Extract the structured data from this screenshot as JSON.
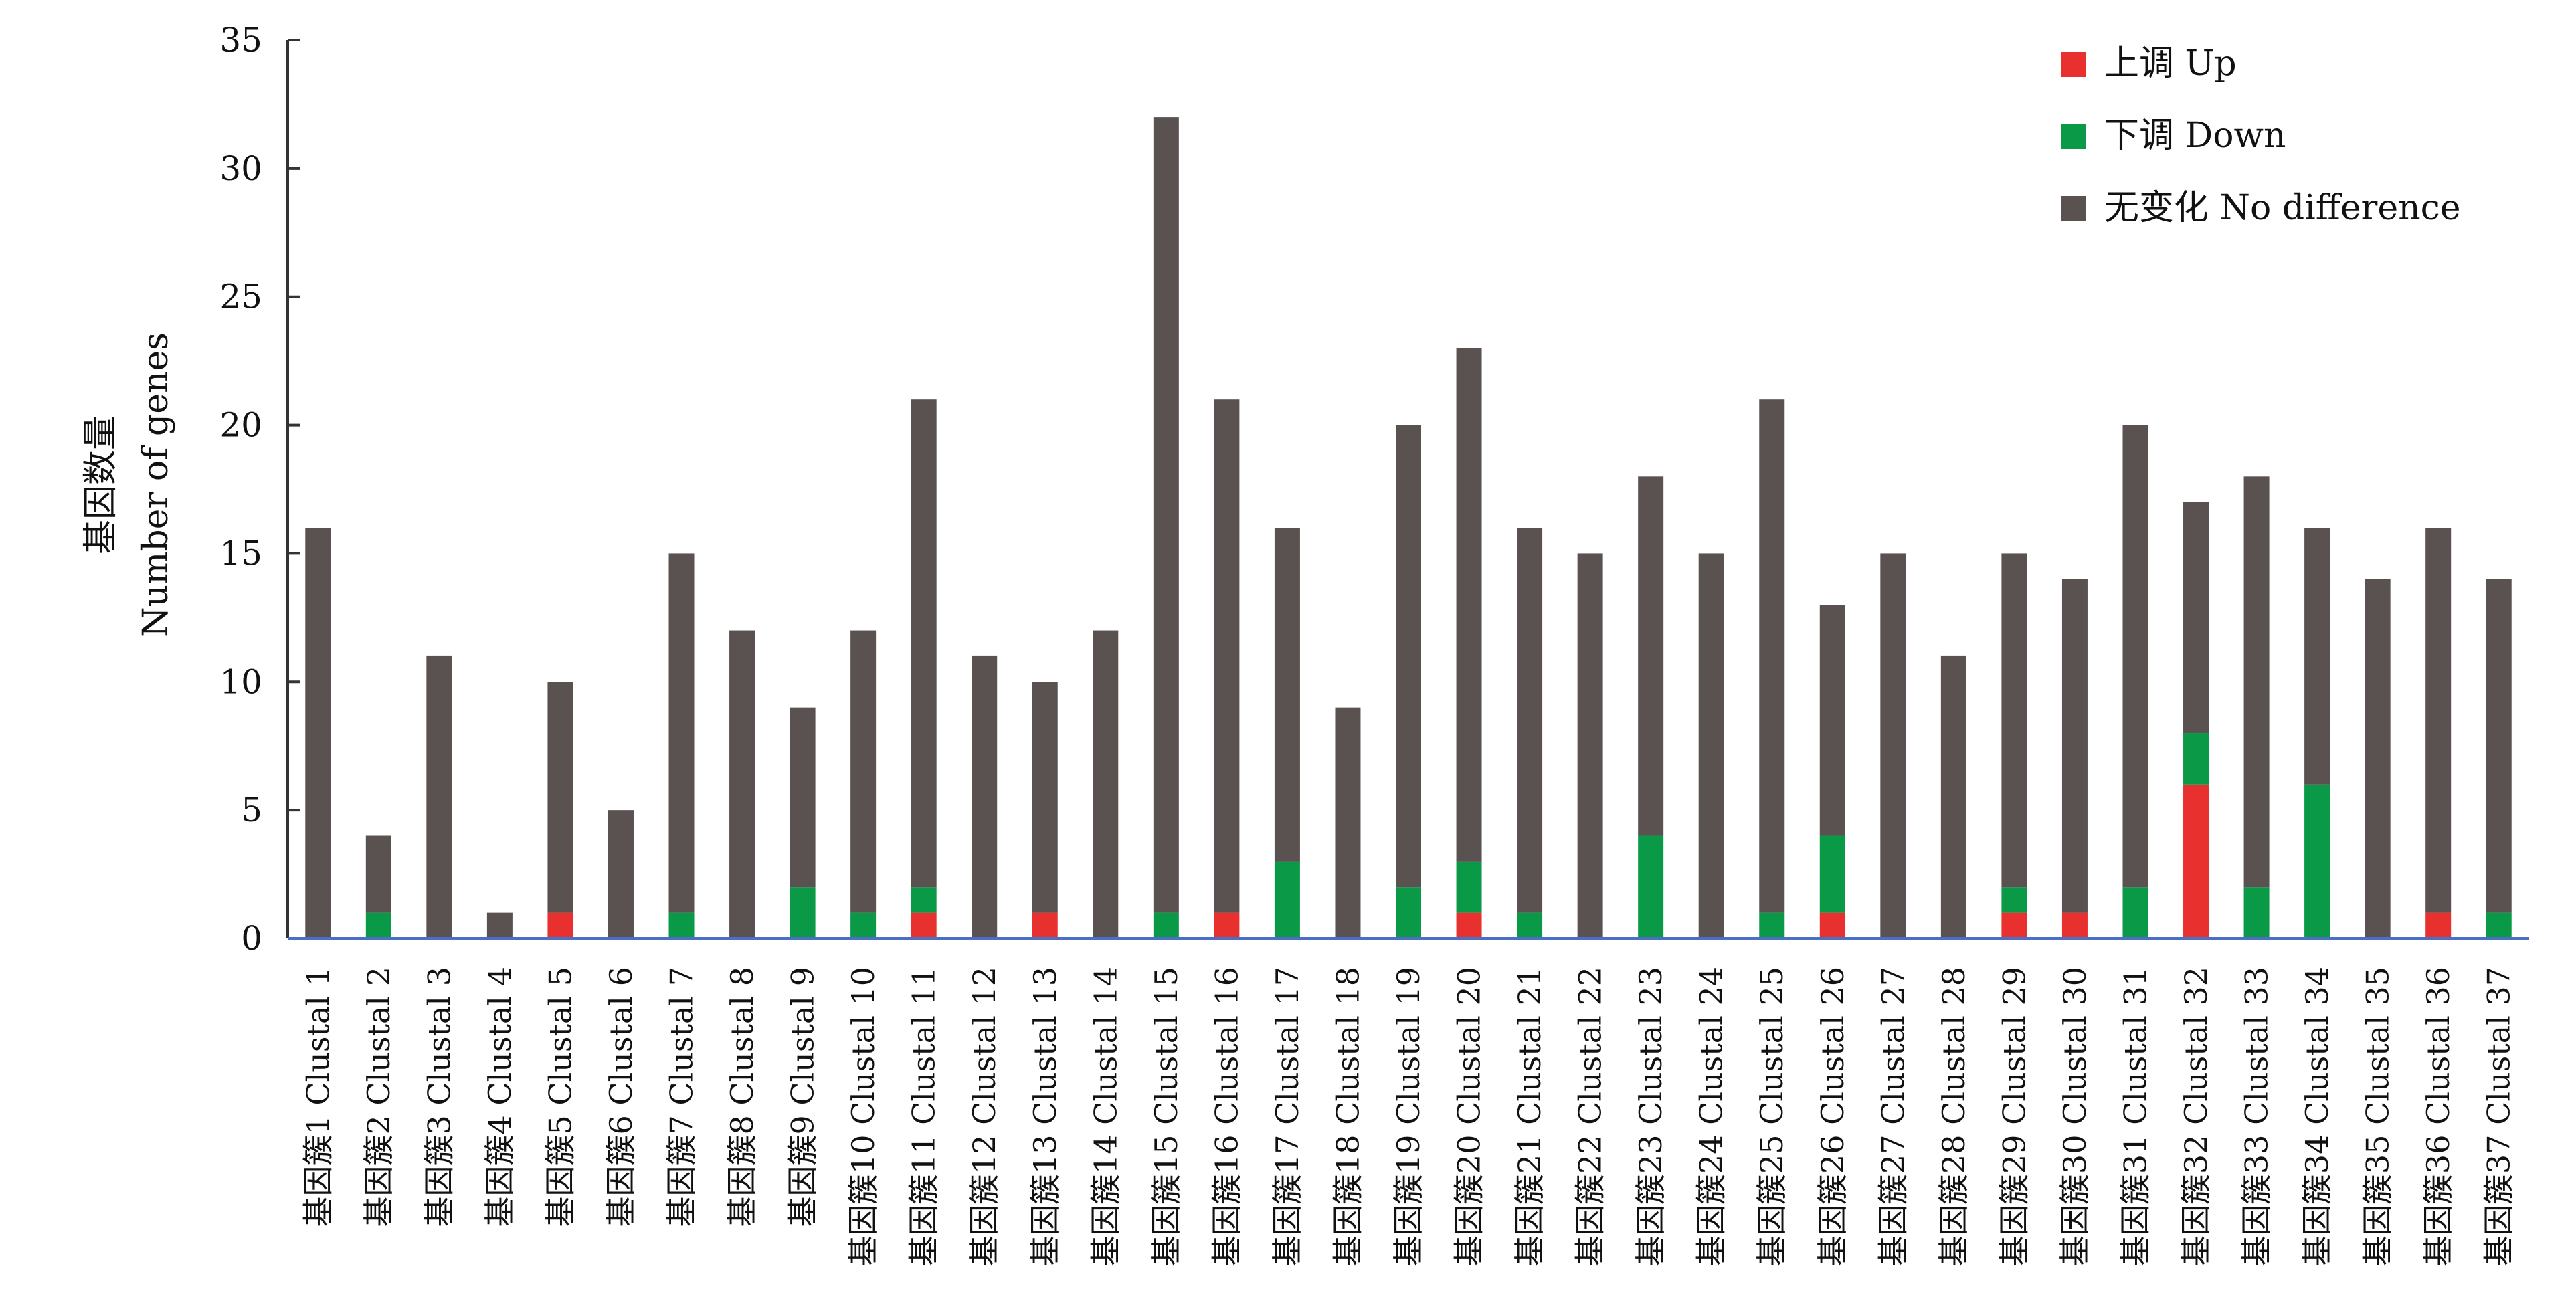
{
  "chart_data": {
    "type": "bar",
    "stacked": true,
    "ylabel": [
      "基因数量",
      "Number of genes"
    ],
    "xlabel": "",
    "ylim": [
      0,
      35
    ],
    "yticks": [
      0,
      5,
      10,
      15,
      20,
      25,
      30,
      35
    ],
    "grid": false,
    "legend_position": "top-right",
    "categories": [
      "基因簇1 Clustal 1",
      "基因簇2 Clustal 2",
      "基因簇3 Clustal 3",
      "基因簇4 Clustal 4",
      "基因簇5 Clustal 5",
      "基因簇6 Clustal 6",
      "基因簇7 Clustal 7",
      "基因簇8 Clustal 8",
      "基因簇9 Clustal 9",
      "基因簇10 Clustal 10",
      "基因簇11 Clustal 11",
      "基因簇12 Clustal 12",
      "基因簇13 Clustal 13",
      "基因簇14 Clustal 14",
      "基因簇15 Clustal 15",
      "基因簇16 Clustal 16",
      "基因簇17 Clustal 17",
      "基因簇18 Clustal 18",
      "基因簇19 Clustal 19",
      "基因簇20 Clustal 20",
      "基因簇21 Clustal 21",
      "基因簇22 Clustal 22",
      "基因簇23 Clustal 23",
      "基因簇24 Clustal 24",
      "基因簇25 Clustal 25",
      "基因簇26 Clustal 26",
      "基因簇27 Clustal 27",
      "基因簇28 Clustal 28",
      "基因簇29 Clustal 29",
      "基因簇30 Clustal 30",
      "基因簇31 Clustal 31",
      "基因簇32 Clustal 32",
      "基因簇33 Clustal 33",
      "基因簇34 Clustal 34",
      "基因簇35 Clustal 35",
      "基因簇36 Clustal 36",
      "基因簇37 Clustal 37"
    ],
    "series": [
      {
        "name": "上调 Up",
        "color": "#e8302e",
        "values": [
          0,
          0,
          0,
          0,
          1,
          0,
          0,
          0,
          0,
          0,
          1,
          0,
          1,
          0,
          0,
          1,
          0,
          0,
          0,
          1,
          0,
          0,
          0,
          0,
          0,
          1,
          0,
          0,
          1,
          1,
          0,
          6,
          0,
          0,
          0,
          1,
          0
        ]
      },
      {
        "name": "下调 Down",
        "color": "#0a9a47",
        "values": [
          0,
          1,
          0,
          0,
          0,
          0,
          1,
          0,
          2,
          1,
          1,
          0,
          0,
          0,
          1,
          0,
          3,
          0,
          2,
          2,
          1,
          0,
          4,
          0,
          1,
          3,
          0,
          0,
          1,
          0,
          2,
          2,
          2,
          6,
          0,
          0,
          1
        ]
      },
      {
        "name": "无变化 No difference",
        "color": "#5a5250",
        "values": [
          16,
          3,
          11,
          1,
          9,
          5,
          14,
          12,
          7,
          11,
          19,
          11,
          9,
          12,
          31,
          20,
          13,
          9,
          18,
          20,
          15,
          15,
          14,
          15,
          20,
          9,
          15,
          11,
          13,
          13,
          18,
          9,
          16,
          10,
          14,
          15,
          13
        ]
      }
    ],
    "axis_color": "#4a6fc4"
  }
}
